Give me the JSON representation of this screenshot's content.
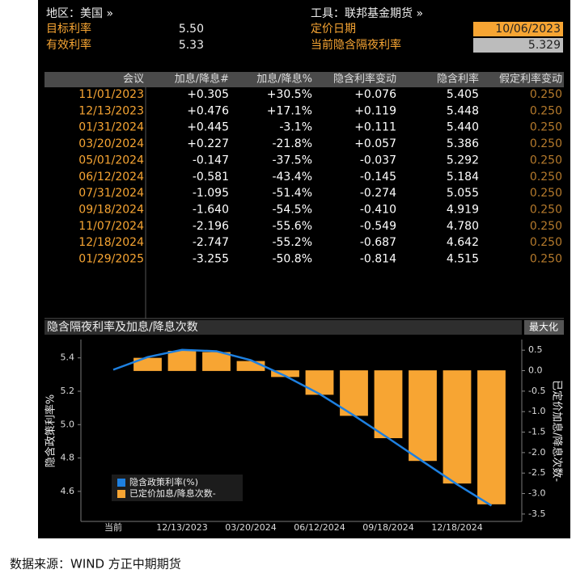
{
  "header": {
    "region": "地区：美国 »",
    "instrument": "工具：联邦基金期货 »",
    "target_rate_label": "目标利率",
    "target_rate": "5.50",
    "effective_rate_label": "有效利率",
    "effective_rate": "5.33",
    "pricing_date_label": "定价日期",
    "pricing_date": "10/06/2023",
    "implied_overnight_label": "当前隐含隔夜利率",
    "implied_overnight": "5.329"
  },
  "table": {
    "columns": [
      "会议",
      "加息/降息#",
      "加息/降息%",
      "隐含利率变动",
      "隐含利率",
      "假定利率变动"
    ],
    "rows": [
      [
        "11/01/2023",
        "+0.305",
        "+30.5%",
        "+0.076",
        "5.405",
        "0.250"
      ],
      [
        "12/13/2023",
        "+0.476",
        "+17.1%",
        "+0.119",
        "5.448",
        "0.250"
      ],
      [
        "01/31/2024",
        "+0.445",
        "-3.1%",
        "+0.111",
        "5.440",
        "0.250"
      ],
      [
        "03/20/2024",
        "+0.227",
        "-21.8%",
        "+0.057",
        "5.386",
        "0.250"
      ],
      [
        "05/01/2024",
        "-0.147",
        "-37.5%",
        "-0.037",
        "5.292",
        "0.250"
      ],
      [
        "06/12/2024",
        "-0.581",
        "-43.4%",
        "-0.145",
        "5.184",
        "0.250"
      ],
      [
        "07/31/2024",
        "-1.095",
        "-51.4%",
        "-0.274",
        "5.055",
        "0.250"
      ],
      [
        "09/18/2024",
        "-1.640",
        "-54.5%",
        "-0.410",
        "4.919",
        "0.250"
      ],
      [
        "11/07/2024",
        "-2.196",
        "-55.6%",
        "-0.549",
        "4.780",
        "0.250"
      ],
      [
        "12/18/2024",
        "-2.747",
        "-55.2%",
        "-0.687",
        "4.642",
        "0.250"
      ],
      [
        "01/29/2025",
        "-3.255",
        "-50.8%",
        "-0.814",
        "4.515",
        "0.250"
      ]
    ]
  },
  "chart_data": {
    "type": "combo",
    "title": "隐含隔夜利率及加息/降息次数",
    "button": "最大化",
    "ylabel": "隐含政策利率%",
    "y2label": "已定价加息/降息次数-",
    "categories": [
      "当前",
      null,
      "12/13/2023",
      null,
      "03/20/2024",
      null,
      "06/12/2024",
      null,
      "09/18/2024",
      null,
      "12/18/2024",
      null
    ],
    "series": [
      {
        "name": "隐含政策利率(%)",
        "type": "line",
        "color": "#1e80e0",
        "axis": "y",
        "values": [
          5.329,
          5.405,
          5.448,
          5.44,
          5.386,
          5.292,
          5.184,
          5.055,
          4.919,
          4.78,
          4.642,
          4.515
        ]
      },
      {
        "name": "已定价加息/降息次数-",
        "type": "bar",
        "color": "#f7a533",
        "axis": "y2",
        "values": [
          0,
          0.305,
          0.476,
          0.445,
          0.227,
          -0.147,
          -0.581,
          -1.095,
          -1.64,
          -2.196,
          -2.747,
          -3.255
        ]
      }
    ],
    "ylim": [
      4.42,
      5.51
    ],
    "yticks": [
      4.6,
      4.8,
      {
        "value": 5,
        "label": "5.0"
      },
      5.2,
      5.4
    ],
    "y2lim": [
      -3.68,
      0.76
    ],
    "y2ticks": [
      0.5,
      {
        "value": 0,
        "label": "0.0"
      },
      -0.5,
      {
        "value": -1,
        "label": "-1.0"
      },
      -1.5,
      {
        "value": -2,
        "label": "-2.0"
      },
      -2.5,
      {
        "value": -3,
        "label": "-3.0"
      },
      -3.5
    ]
  },
  "footer": "数据来源：WIND 方正中期期货"
}
